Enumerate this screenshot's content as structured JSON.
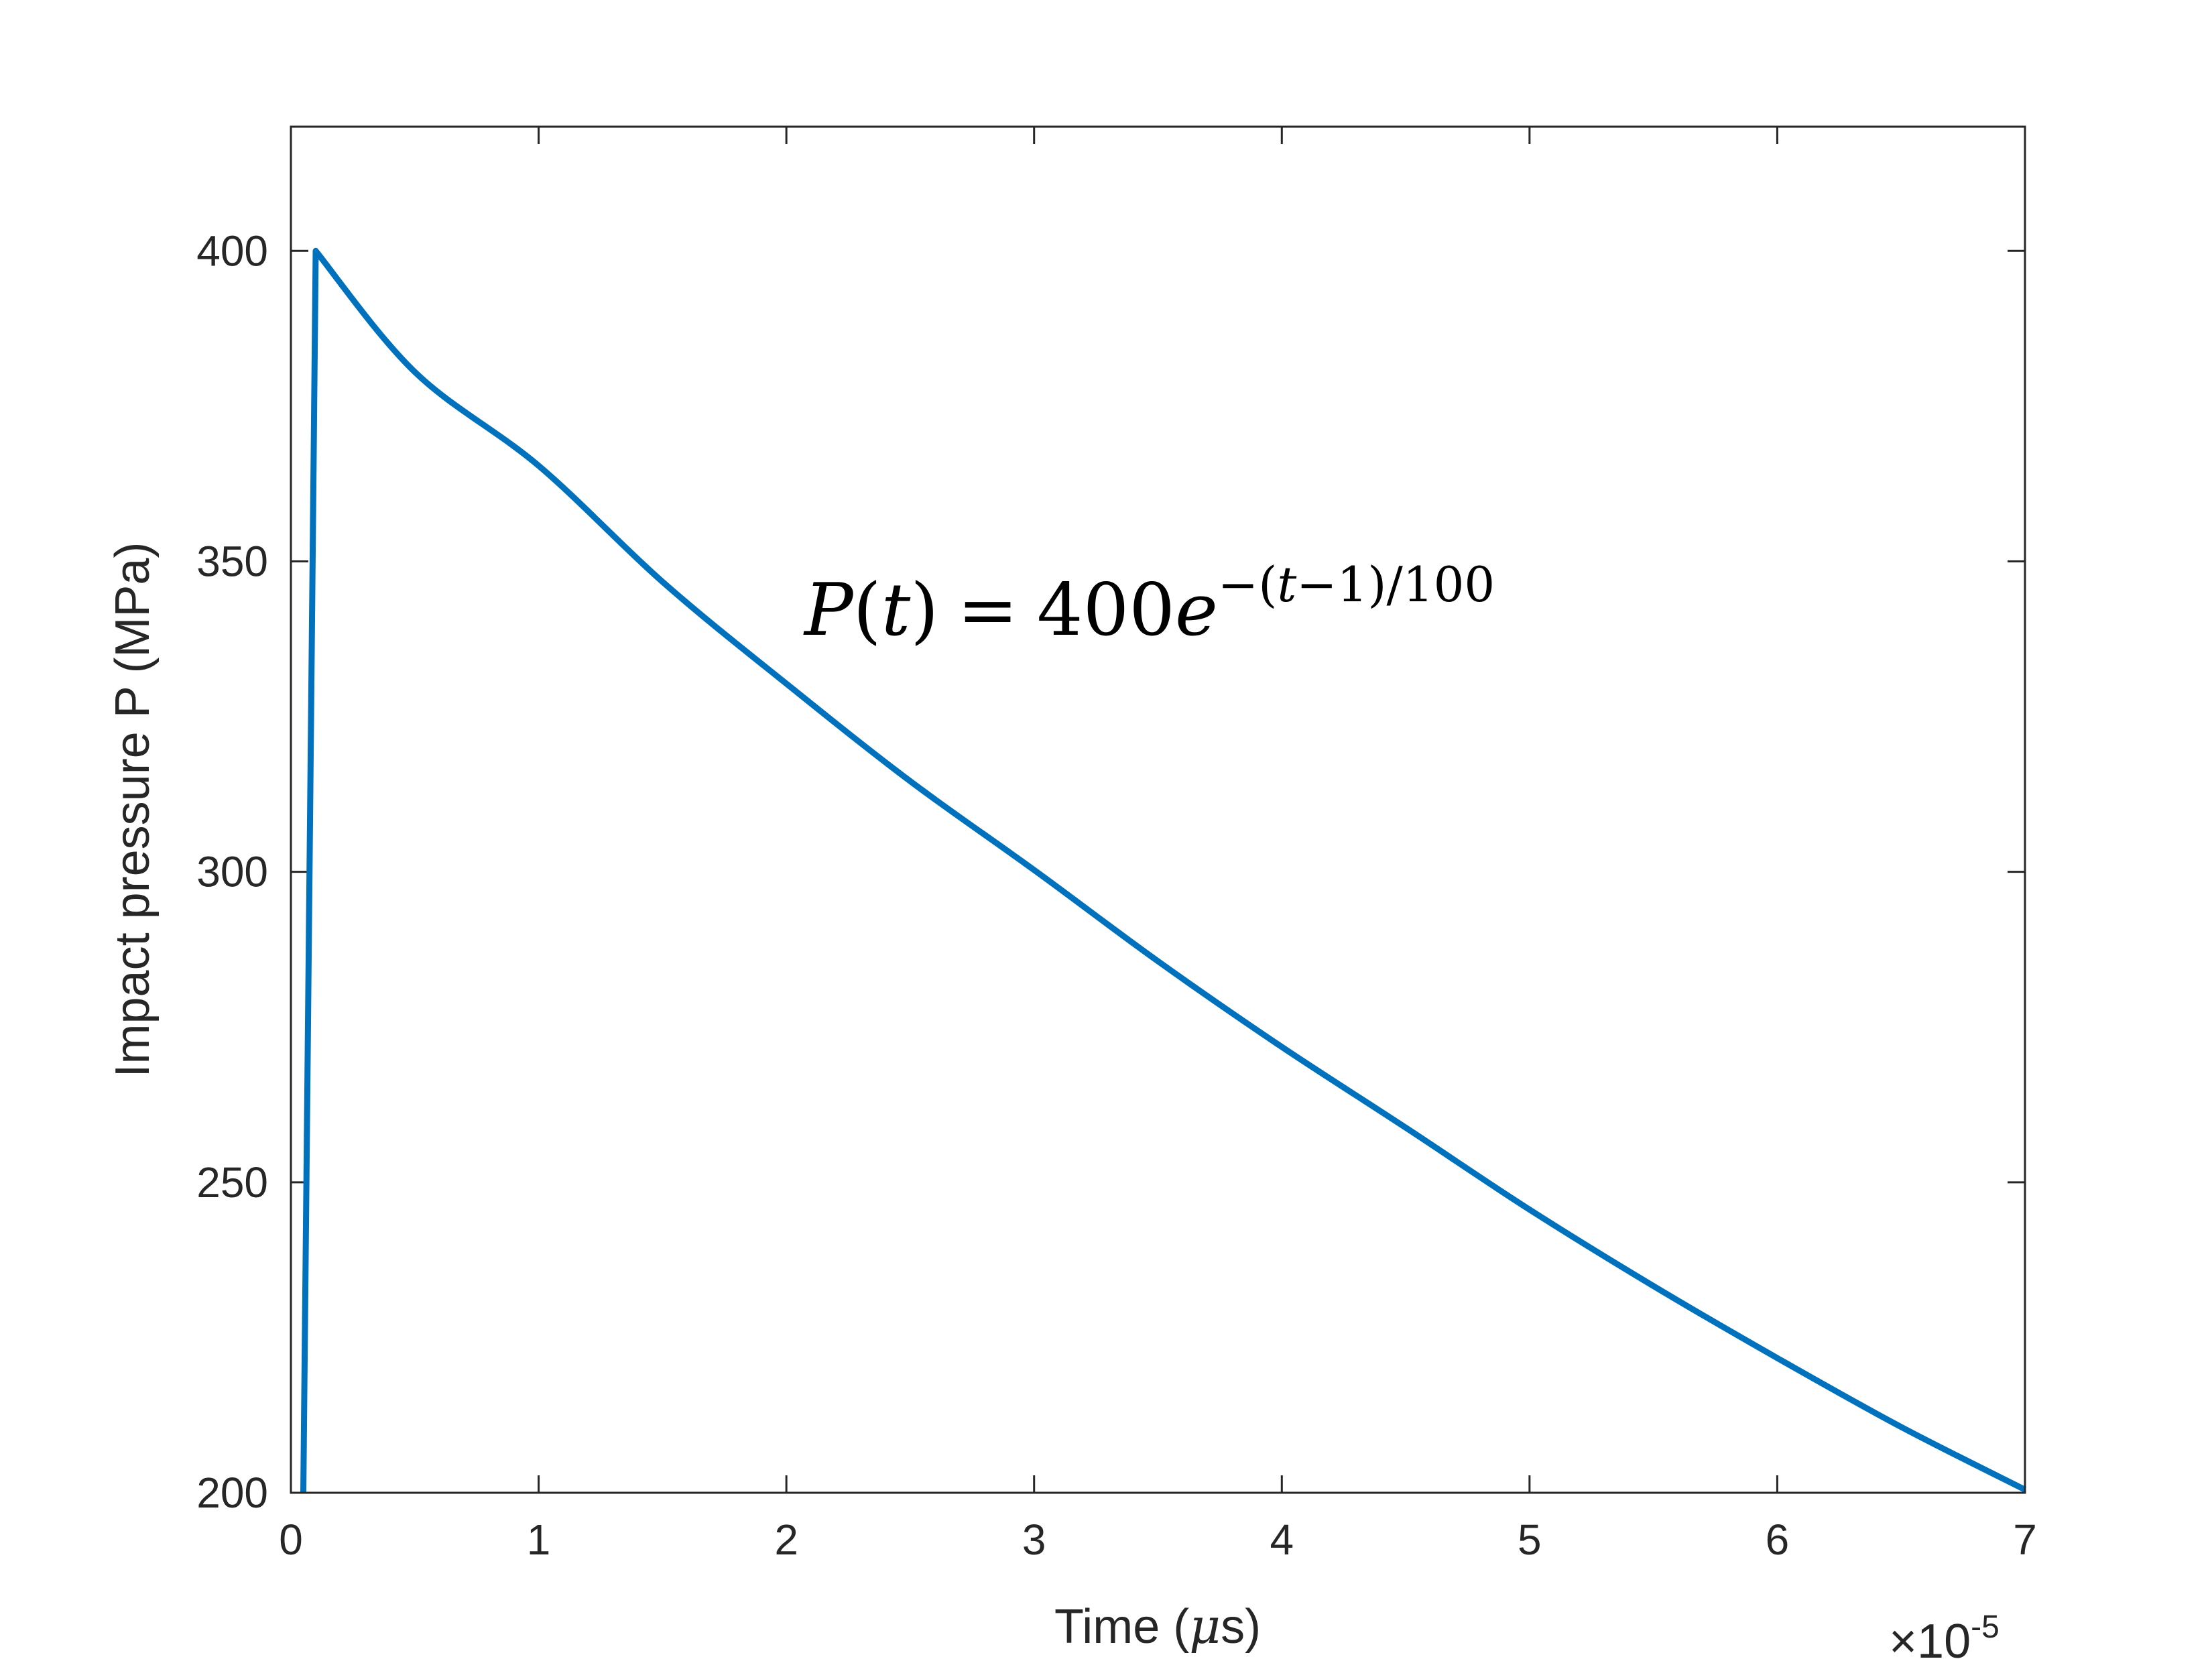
{
  "chart_data": {
    "type": "line",
    "xlabel": "Time (",
    "xlabel_mu": "μ",
    "xlabel_rest": "s)",
    "ylabel": "Impact pressure P (MPa)",
    "x_exponent_prefix": "×10",
    "x_exponent_power": "-5",
    "xlim": [
      0,
      7
    ],
    "ylim": [
      200,
      420
    ],
    "xticks": [
      "0",
      "1",
      "2",
      "3",
      "4",
      "5",
      "6",
      "7"
    ],
    "yticks": [
      "200",
      "250",
      "300",
      "350",
      "400"
    ],
    "grid": false,
    "series": [
      {
        "color": "#0072BD",
        "x": [
          0.05,
          0.1,
          0.5,
          1,
          1.5,
          2,
          2.5,
          3,
          3.5,
          4,
          4.5,
          5,
          5.5,
          6,
          6.5,
          7
        ],
        "y": [
          200,
          400,
          380.5,
          365.4,
          346.7,
          330.3,
          314.6,
          300.3,
          285.6,
          271.8,
          258.8,
          245.6,
          233.3,
          221.7,
          210.6,
          200.5
        ]
      }
    ],
    "annotation": {
      "P": "P",
      "open": "(",
      "t": "t",
      "close": ")",
      "eq": "=",
      "coef": "400",
      "e": "e",
      "exp_minus": "−",
      "exp_open": "(",
      "exp_t": "t",
      "exp_mid": "−1)/100"
    }
  }
}
